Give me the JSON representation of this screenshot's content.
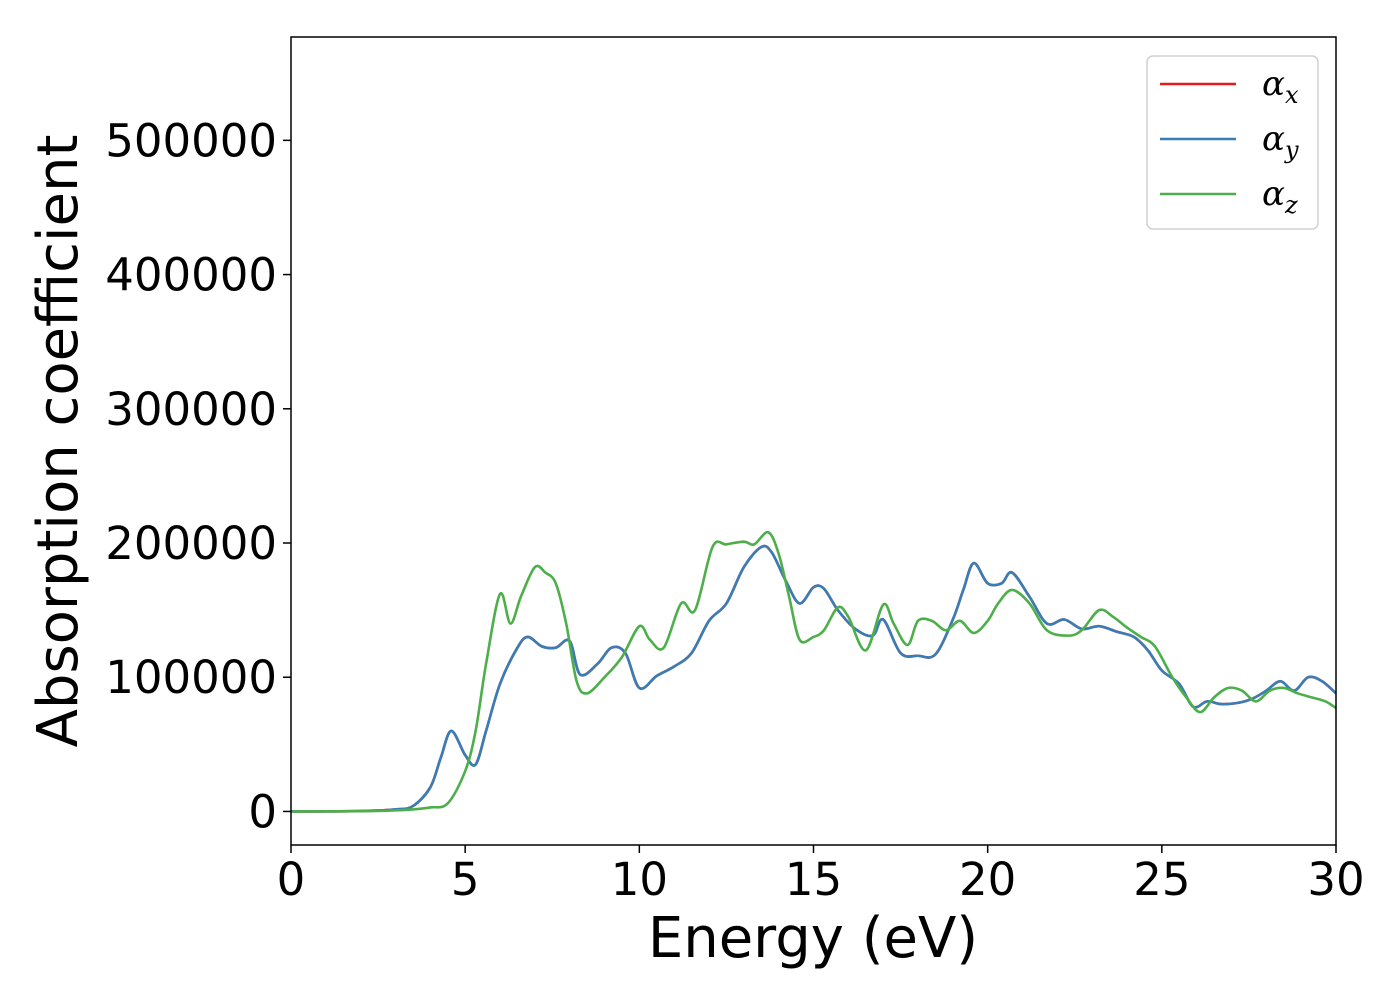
{
  "chart_data": {
    "type": "line",
    "title": "",
    "xlabel": "Energy (eV)",
    "ylabel": "Absorption coefficient",
    "xlim": [
      0,
      30
    ],
    "ylim": [
      -25000,
      577000
    ],
    "xticks": [
      0,
      5,
      10,
      15,
      20,
      25,
      30
    ],
    "yticks": [
      0,
      100000,
      200000,
      300000,
      400000,
      500000
    ],
    "grid": false,
    "legend_position": "top-right",
    "series": [
      {
        "name": "α",
        "subscript": "x",
        "color": "#e41a1c",
        "x": [
          0,
          2,
          3,
          3.5,
          4,
          4.3,
          4.6,
          5,
          5.3,
          5.6,
          6,
          6.5,
          6.8,
          7.2,
          7.6,
          8,
          8.3,
          8.8,
          9.2,
          9.6,
          10,
          10.5,
          11,
          11.5,
          12,
          12.5,
          13,
          13.5,
          13.8,
          14.2,
          14.6,
          15,
          15.3,
          15.7,
          16.2,
          16.7,
          17,
          17.5,
          18,
          18.5,
          19,
          19.3,
          19.6,
          20,
          20.4,
          20.7,
          21.2,
          21.7,
          22.2,
          22.7,
          23.2,
          23.7,
          24.2,
          24.6,
          25,
          25.5,
          25.9,
          26.3,
          26.7,
          27.2,
          27.6,
          28,
          28.4,
          28.8,
          29.2,
          29.6,
          30
        ],
        "y": [
          0,
          300,
          1500,
          4000,
          18000,
          40000,
          60000,
          42000,
          35000,
          60000,
          95000,
          122000,
          130000,
          123000,
          122000,
          127000,
          102000,
          110000,
          122000,
          118000,
          92000,
          101000,
          108000,
          118000,
          142000,
          155000,
          182000,
          197000,
          193000,
          172000,
          155000,
          167000,
          166000,
          150000,
          136000,
          131000,
          143000,
          118000,
          116000,
          117000,
          143000,
          165000,
          185000,
          170000,
          170000,
          178000,
          160000,
          140000,
          143000,
          136000,
          138000,
          134000,
          130000,
          120000,
          105000,
          95000,
          78000,
          82000,
          80000,
          81000,
          84000,
          90000,
          97000,
          90000,
          100000,
          97000,
          88000
        ]
      },
      {
        "name": "α",
        "subscript": "y",
        "color": "#377eb8",
        "x": [
          0,
          2,
          3,
          3.5,
          4,
          4.3,
          4.6,
          5,
          5.3,
          5.6,
          6,
          6.5,
          6.8,
          7.2,
          7.6,
          8,
          8.3,
          8.8,
          9.2,
          9.6,
          10,
          10.5,
          11,
          11.5,
          12,
          12.5,
          13,
          13.5,
          13.8,
          14.2,
          14.6,
          15,
          15.3,
          15.7,
          16.2,
          16.7,
          17,
          17.5,
          18,
          18.5,
          19,
          19.3,
          19.6,
          20,
          20.4,
          20.7,
          21.2,
          21.7,
          22.2,
          22.7,
          23.2,
          23.7,
          24.2,
          24.6,
          25,
          25.5,
          25.9,
          26.3,
          26.7,
          27.2,
          27.6,
          28,
          28.4,
          28.8,
          29.2,
          29.6,
          30
        ],
        "y": [
          0,
          300,
          1500,
          4000,
          18000,
          40000,
          60000,
          42000,
          35000,
          60000,
          95000,
          122000,
          130000,
          123000,
          122000,
          127000,
          102000,
          110000,
          122000,
          118000,
          92000,
          101000,
          108000,
          118000,
          142000,
          155000,
          182000,
          197000,
          193000,
          172000,
          155000,
          167000,
          166000,
          150000,
          136000,
          131000,
          143000,
          118000,
          116000,
          117000,
          143000,
          165000,
          185000,
          170000,
          170000,
          178000,
          160000,
          140000,
          143000,
          136000,
          138000,
          134000,
          130000,
          120000,
          105000,
          95000,
          78000,
          82000,
          80000,
          81000,
          84000,
          90000,
          97000,
          90000,
          100000,
          97000,
          88000
        ]
      },
      {
        "name": "α",
        "subscript": "z",
        "color": "#4daf4a",
        "x": [
          0,
          2,
          3,
          3.5,
          4,
          4.5,
          5,
          5.3,
          5.6,
          6,
          6.3,
          6.6,
          7,
          7.3,
          7.6,
          7.9,
          8.2,
          8.5,
          9,
          9.5,
          10,
          10.3,
          10.7,
          11.2,
          11.6,
          12.1,
          12.5,
          13,
          13.3,
          13.7,
          14,
          14.3,
          14.6,
          15,
          15.3,
          15.7,
          16,
          16.5,
          17,
          17.3,
          17.7,
          18,
          18.4,
          18.8,
          19.2,
          19.6,
          20,
          20.3,
          20.7,
          21.2,
          21.7,
          22.3,
          22.7,
          23.2,
          23.6,
          24,
          24.4,
          24.8,
          25.3,
          25.7,
          26.1,
          26.5,
          26.9,
          27.3,
          27.7,
          28.1,
          28.5,
          28.9,
          29.3,
          29.7,
          30
        ],
        "y": [
          0,
          200,
          800,
          1500,
          3000,
          6000,
          30000,
          60000,
          110000,
          162000,
          140000,
          160000,
          182000,
          178000,
          170000,
          140000,
          97000,
          88000,
          100000,
          115000,
          138000,
          128000,
          122000,
          155000,
          150000,
          197000,
          199000,
          201000,
          199000,
          208000,
          192000,
          160000,
          128000,
          130000,
          135000,
          152000,
          145000,
          120000,
          154000,
          140000,
          124000,
          142000,
          142000,
          135000,
          142000,
          133000,
          142000,
          155000,
          165000,
          155000,
          135000,
          131000,
          135000,
          150000,
          145000,
          137000,
          130000,
          123000,
          100000,
          85000,
          74000,
          85000,
          92000,
          90000,
          82000,
          90000,
          92000,
          88000,
          85000,
          82000,
          77000
        ]
      }
    ]
  }
}
